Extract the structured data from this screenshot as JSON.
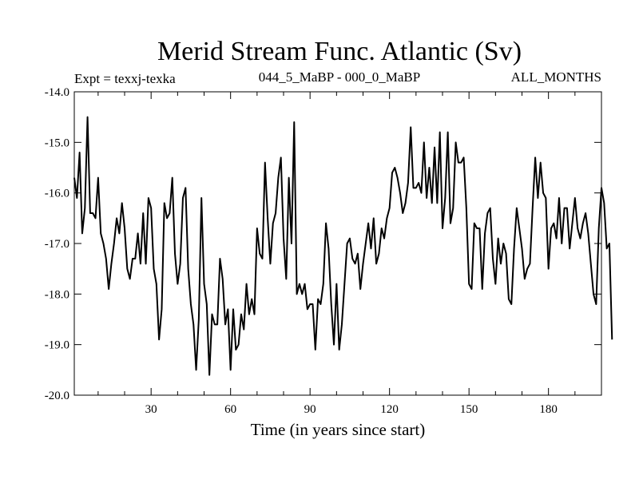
{
  "chart_data": {
    "type": "line",
    "title": "Merid Stream Func. Atlantic (Sv)",
    "subtitle_left": "Expt = texxj-texka",
    "subtitle_center": "044_5_MaBP - 000_0_MaBP",
    "subtitle_right": "ALL_MONTHS",
    "xlabel": "Time (in years since start)",
    "ylabel": "",
    "xlim": [
      1,
      200
    ],
    "ylim": [
      -20.0,
      -14.0
    ],
    "x_ticks": [
      30,
      60,
      90,
      120,
      150,
      180
    ],
    "x_tick_labels": [
      "30",
      "60",
      "90",
      "120",
      "150",
      "180"
    ],
    "y_ticks": [
      -14.0,
      -15.0,
      -16.0,
      -17.0,
      -18.0,
      -19.0,
      -20.0
    ],
    "y_tick_labels": [
      "-14.0",
      "-15.0",
      "-16.0",
      "-17.0",
      "-18.0",
      "-19.0",
      "-20.0"
    ],
    "line_color": "#000000",
    "series": [
      {
        "name": "Merid Stream Func. Atlantic",
        "x_start": 1,
        "x_step": 1,
        "values": [
          -15.7,
          -16.1,
          -15.2,
          -16.8,
          -16.3,
          -14.5,
          -16.4,
          -16.4,
          -16.5,
          -15.7,
          -16.8,
          -17.0,
          -17.3,
          -17.9,
          -17.4,
          -17.0,
          -16.5,
          -16.8,
          -16.2,
          -16.7,
          -17.5,
          -17.7,
          -17.3,
          -17.3,
          -16.8,
          -17.4,
          -16.4,
          -17.4,
          -16.1,
          -16.3,
          -17.5,
          -17.8,
          -18.9,
          -18.3,
          -16.2,
          -16.5,
          -16.4,
          -15.7,
          -17.2,
          -17.8,
          -17.4,
          -16.1,
          -15.9,
          -17.5,
          -18.2,
          -18.6,
          -19.5,
          -18.5,
          -16.1,
          -17.8,
          -18.2,
          -19.6,
          -18.4,
          -18.6,
          -18.6,
          -17.3,
          -17.7,
          -18.6,
          -18.3,
          -19.5,
          -18.3,
          -19.1,
          -19.0,
          -18.4,
          -18.7,
          -17.8,
          -18.4,
          -18.1,
          -18.4,
          -16.7,
          -17.2,
          -17.3,
          -15.4,
          -16.5,
          -17.4,
          -16.6,
          -16.4,
          -15.7,
          -15.3,
          -16.9,
          -17.7,
          -15.7,
          -17.0,
          -14.6,
          -18.0,
          -17.8,
          -18.0,
          -17.8,
          -18.3,
          -18.2,
          -18.2,
          -19.1,
          -18.1,
          -18.2,
          -17.8,
          -16.6,
          -17.1,
          -18.2,
          -19.0,
          -17.8,
          -19.1,
          -18.6,
          -17.8,
          -17.0,
          -16.9,
          -17.3,
          -17.4,
          -17.2,
          -17.9,
          -17.4,
          -17.0,
          -16.6,
          -17.1,
          -16.5,
          -17.4,
          -17.2,
          -16.7,
          -16.9,
          -16.5,
          -16.3,
          -15.6,
          -15.5,
          -15.7,
          -16.0,
          -16.4,
          -16.2,
          -15.8,
          -14.7,
          -15.9,
          -15.9,
          -15.8,
          -16.0,
          -15.0,
          -16.1,
          -15.5,
          -16.2,
          -15.1,
          -16.2,
          -14.8,
          -16.7,
          -16.1,
          -14.8,
          -16.6,
          -16.3,
          -15.0,
          -15.4,
          -15.4,
          -15.3,
          -16.3,
          -17.8,
          -17.9,
          -16.6,
          -16.7,
          -16.7,
          -17.9,
          -16.8,
          -16.4,
          -16.3,
          -17.3,
          -17.8,
          -16.9,
          -17.4,
          -17.0,
          -17.2,
          -18.1,
          -18.2,
          -17.1,
          -16.3,
          -16.7,
          -17.1,
          -17.7,
          -17.5,
          -17.4,
          -16.3,
          -15.3,
          -16.1,
          -15.4,
          -16.0,
          -16.1,
          -17.5,
          -16.7,
          -16.6,
          -16.9,
          -16.1,
          -17.0,
          -16.3,
          -16.3,
          -17.1,
          -16.6,
          -16.1,
          -16.7,
          -16.9,
          -16.6,
          -16.4,
          -16.8,
          -17.4,
          -18.0,
          -18.2,
          -16.7,
          -15.9,
          -16.2,
          -17.1,
          -17.0,
          -18.9
        ]
      }
    ]
  }
}
